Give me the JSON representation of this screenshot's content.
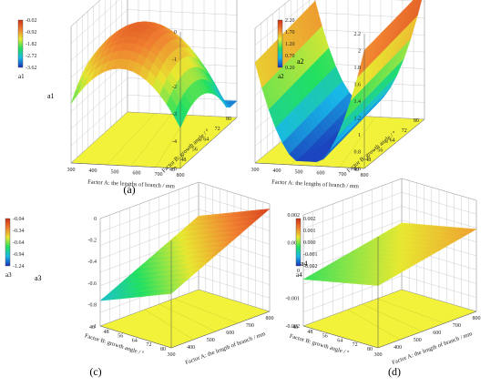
{
  "chart_data": [
    {
      "id": "a",
      "type": "surface3d",
      "panel_label": "(a)",
      "response": "a1",
      "z_axis_label": "a1",
      "z_ticks": [
        "0",
        "-1",
        "-2",
        "-3",
        "-4",
        "-5"
      ],
      "zlim": [
        -5,
        0
      ],
      "colorbar": {
        "ticks": [
          "-0.02",
          "-0.92",
          "-1.82",
          "-2.72",
          "-3.62"
        ],
        "label": "a1"
      },
      "x_axis": {
        "label": "Factor A: the lengths of branch / mm",
        "ticks": [
          "800",
          "700",
          "600",
          "500",
          "400",
          "300"
        ]
      },
      "y_axis": {
        "label": "Factor B: growth angle / °",
        "ticks": [
          "40",
          "48",
          "56",
          "64",
          "72",
          "80"
        ]
      },
      "surface_shape": "dome",
      "z_range_shown": [
        -4.4,
        -0.4
      ]
    },
    {
      "id": "b",
      "type": "surface3d",
      "panel_label": "(b)",
      "response": "a2",
      "z_axis_label": "a2",
      "z_ticks": [
        "2.2",
        "2",
        "1.8",
        "1.6",
        "1.4",
        "1.2",
        "1",
        "0.8",
        "0.6"
      ],
      "zlim": [
        0.6,
        2.2
      ],
      "colorbar": {
        "ticks": [
          "2.20",
          "1.70",
          "1.20",
          "0.70",
          "0.20"
        ],
        "label": "a2"
      },
      "x_axis": {
        "label": "Factor A: the lengths of branch / mm",
        "ticks": [
          "800",
          "700",
          "600",
          "500",
          "400",
          "300"
        ]
      },
      "y_axis": {
        "label": "Factor B: growth angle / °",
        "ticks": [
          "40",
          "48",
          "56",
          "64",
          "72",
          "80"
        ]
      },
      "surface_shape": "valley",
      "z_range_shown": [
        0.65,
        2.15
      ]
    },
    {
      "id": "c",
      "type": "surface3d",
      "panel_label": "(c)",
      "response": "a3",
      "z_axis_label": "a3",
      "z_ticks": [
        "0",
        "-0.2",
        "-0.4",
        "-0.6",
        "-0.8",
        "-1"
      ],
      "zlim": [
        -1.1,
        0
      ],
      "colorbar": {
        "ticks": [
          "-0.04",
          "-0.34",
          "-0.64",
          "-0.94",
          "-1.24"
        ],
        "label": "a3"
      },
      "x_axis": {
        "label": "Factor A: the length of branch / mm",
        "ticks": [
          "300",
          "400",
          "500",
          "600",
          "700",
          "800"
        ]
      },
      "y_axis": {
        "label": "Factor B: growth angle / °",
        "ticks": [
          "80",
          "72",
          "64",
          "56",
          "48",
          "40"
        ]
      },
      "surface_shape": "tilted_plane",
      "z_range_shown": [
        -0.95,
        -0.05
      ]
    },
    {
      "id": "d",
      "type": "surface3d",
      "panel_label": "(d)",
      "response": "a4",
      "z_axis_label": "a4",
      "z_ticks": [
        "0.002",
        "0.001",
        "0",
        "-0.001",
        "-0.002"
      ],
      "zlim": [
        -0.0025,
        0.0025
      ],
      "colorbar": {
        "ticks": [
          "0.002",
          "0.001",
          "0.000",
          "-0.001",
          "-0.002"
        ],
        "label": "a4"
      },
      "x_axis": {
        "label": "Factor A: the length of branch / mm",
        "ticks": [
          "300",
          "400",
          "500",
          "600",
          "700",
          "800"
        ]
      },
      "y_axis": {
        "label": "Factor B: growth angle / °",
        "ticks": [
          "80",
          "72",
          "64",
          "56",
          "48",
          "40"
        ]
      },
      "surface_shape": "flat_tilted",
      "z_range_shown": [
        -0.0008,
        0.0012
      ]
    }
  ],
  "colors": {
    "colormap": [
      "#1a2fb8",
      "#18b8e8",
      "#22e060",
      "#e8e830",
      "#f08030",
      "#d03018"
    ],
    "floor": "#f2f23a",
    "grid": "#b8b8b8"
  }
}
